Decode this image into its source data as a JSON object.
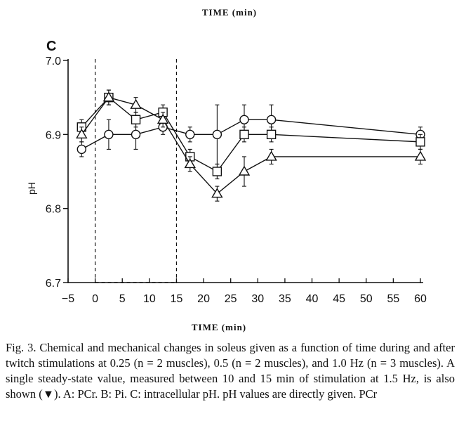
{
  "top_title": "TIME  (min)",
  "caption": "Fig. 3.  Chemical and mechanical changes in soleus given as a function of time during and after twitch stimulations at 0.25 (n = 2 muscles), 0.5 (n = 2 muscles), and 1.0 Hz (n = 3 muscles). A single steady-state value, measured between 10 and 15 min of stimulation at 1.5 Hz, is also shown (▼). A: PCr. B: Pi. C: intracellular pH. pH values are directly given. PCr",
  "chart_data": {
    "type": "line",
    "panel_label": "C",
    "xlabel": "TIME  (min)",
    "ylabel": "pH",
    "xlim": [
      -5,
      60
    ],
    "ylim": [
      6.7,
      7.0
    ],
    "xticks": [
      -5,
      0,
      5,
      10,
      15,
      20,
      25,
      30,
      35,
      40,
      45,
      50,
      55,
      60
    ],
    "yticks": [
      6.7,
      6.8,
      6.9,
      7.0
    ],
    "ytick_labels": [
      "6.7",
      "6.8",
      "6.9",
      "7.0"
    ],
    "stimulation_markers": [
      0,
      15
    ],
    "series": [
      {
        "marker": "circle",
        "x": [
          -2.5,
          2.5,
          7.5,
          12.5,
          17.5,
          22.5,
          27.5,
          32.5,
          60
        ],
        "y": [
          6.88,
          6.9,
          6.9,
          6.91,
          6.9,
          6.9,
          6.92,
          6.92,
          6.9
        ],
        "err": [
          0.01,
          0.02,
          0.02,
          0.01,
          0.01,
          0.04,
          0.02,
          0.02,
          0.01
        ]
      },
      {
        "marker": "square",
        "x": [
          -2.5,
          2.5,
          7.5,
          12.5,
          17.5,
          22.5,
          27.5,
          32.5,
          60
        ],
        "y": [
          6.91,
          6.95,
          6.92,
          6.93,
          6.87,
          6.85,
          6.9,
          6.9,
          6.89
        ],
        "err": [
          0.01,
          0.01,
          0.01,
          0.01,
          0.01,
          0.01,
          0.01,
          0.01,
          0.01
        ]
      },
      {
        "marker": "triangle",
        "x": [
          -2.5,
          2.5,
          7.5,
          12.5,
          17.5,
          22.5,
          27.5,
          32.5,
          60
        ],
        "y": [
          6.9,
          6.95,
          6.94,
          6.92,
          6.86,
          6.82,
          6.85,
          6.87,
          6.87
        ],
        "err": [
          0.01,
          0.01,
          0.01,
          0.01,
          0.01,
          0.01,
          0.02,
          0.01,
          0.01
        ]
      }
    ]
  }
}
